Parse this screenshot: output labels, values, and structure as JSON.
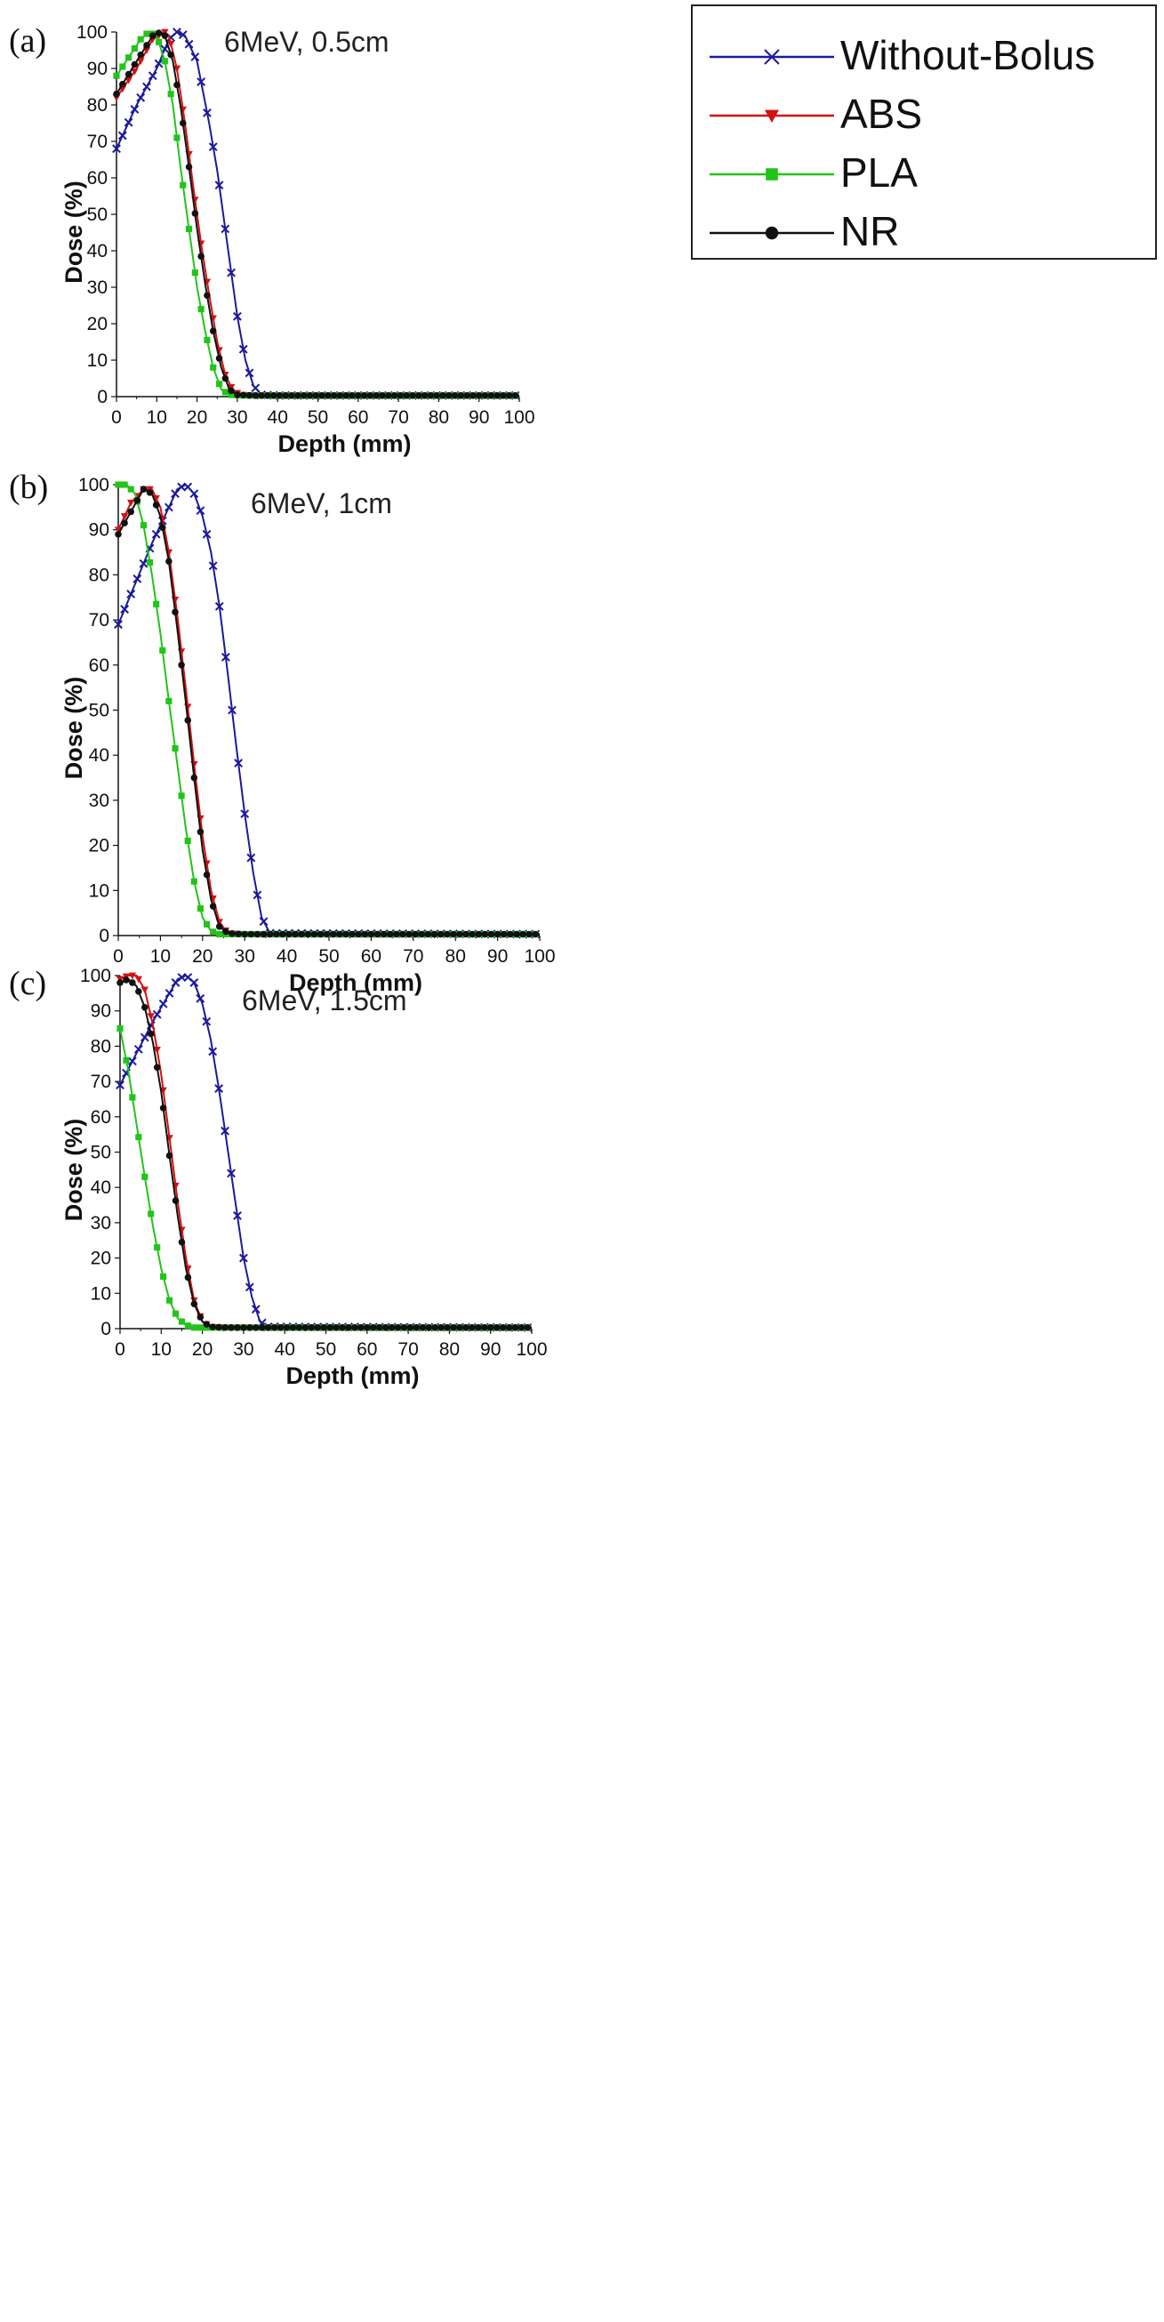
{
  "legend": {
    "entries": [
      {
        "name": "Without-Bolus",
        "color": "#1a1a9c",
        "marker": "x"
      },
      {
        "name": "ABS",
        "color": "#d41010",
        "marker": "triangle-down"
      },
      {
        "name": "PLA",
        "color": "#22c41a",
        "marker": "square"
      },
      {
        "name": "NR",
        "color": "#111111",
        "marker": "circle"
      }
    ]
  },
  "chart_data": [
    {
      "type": "line",
      "panel_label": "(a)",
      "title": "6MeV, 0.5cm",
      "xlabel": "Depth (mm)",
      "ylabel": "Dose (%)",
      "xlim": [
        0,
        100
      ],
      "ylim": [
        0,
        100
      ],
      "xticks": [
        0,
        10,
        20,
        30,
        40,
        50,
        60,
        70,
        80,
        90,
        100
      ],
      "yticks": [
        0,
        10,
        20,
        30,
        40,
        50,
        60,
        70,
        80,
        90,
        100
      ],
      "series": [
        {
          "name": "Without-Bolus",
          "x": [
            0,
            5,
            10,
            13,
            15,
            17,
            20,
            23,
            25,
            28,
            30,
            32,
            34,
            36,
            40,
            100
          ],
          "y": [
            68,
            80,
            90,
            98,
            100,
            99,
            92,
            75,
            62,
            38,
            22,
            10,
            3,
            0.5,
            0.3,
            0.3
          ]
        },
        {
          "name": "ABS",
          "x": [
            0,
            5,
            9,
            12,
            13,
            15,
            17,
            19,
            21,
            23,
            25,
            27,
            29,
            31,
            35,
            100
          ],
          "y": [
            82,
            90,
            98,
            100,
            99,
            90,
            75,
            58,
            42,
            28,
            15,
            6,
            1.5,
            0.5,
            0.3,
            0.3
          ]
        },
        {
          "name": "PLA",
          "x": [
            0,
            3,
            6,
            8,
            10,
            12,
            14,
            16,
            18,
            20,
            22,
            24,
            26,
            28,
            32,
            100
          ],
          "y": [
            88,
            93,
            98,
            100,
            99,
            92,
            80,
            62,
            46,
            30,
            18,
            8,
            2,
            0.5,
            0.3,
            0.3
          ]
        },
        {
          "name": "NR",
          "x": [
            0,
            5,
            9,
            11,
            12,
            14,
            16,
            18,
            20,
            22,
            24,
            26,
            28,
            30,
            34,
            100
          ],
          "y": [
            83,
            92,
            99,
            100,
            99,
            92,
            79,
            63,
            46,
            31,
            18,
            8,
            2,
            0.5,
            0.3,
            0.3
          ]
        }
      ]
    },
    {
      "type": "line",
      "panel_label": "(b)",
      "title": "6MeV, 1cm",
      "xlabel": "Depth (mm)",
      "ylabel": "Dose (%)",
      "xlim": [
        0,
        100
      ],
      "ylim": [
        0,
        100
      ],
      "xticks": [
        0,
        10,
        20,
        30,
        40,
        50,
        60,
        70,
        80,
        90,
        100
      ],
      "yticks": [
        0,
        10,
        20,
        30,
        40,
        50,
        60,
        70,
        80,
        90,
        100
      ],
      "series": [
        {
          "name": "Without-Bolus",
          "x": [
            0,
            4,
            8,
            12,
            14,
            16,
            18,
            20,
            22,
            24,
            26,
            28,
            30,
            32,
            34,
            36,
            100
          ],
          "y": [
            69,
            78,
            87,
            95,
            99,
            100,
            98,
            93,
            85,
            73,
            58,
            42,
            27,
            14,
            4,
            0.5,
            0.3
          ]
        },
        {
          "name": "ABS",
          "x": [
            0,
            3,
            6,
            8,
            10,
            12,
            14,
            16,
            18,
            20,
            22,
            24,
            26,
            30,
            100
          ],
          "y": [
            90,
            96,
            99,
            99,
            95,
            85,
            71,
            55,
            38,
            22,
            10,
            3,
            0.5,
            0.3,
            0.3
          ]
        },
        {
          "name": "PLA",
          "x": [
            0,
            2,
            4,
            6,
            8,
            10,
            12,
            14,
            16,
            18,
            20,
            22,
            24,
            28,
            100
          ],
          "y": [
            100,
            100,
            98,
            91,
            80,
            67,
            52,
            38,
            24,
            12,
            4,
            1,
            0.3,
            0.3,
            0.3
          ]
        },
        {
          "name": "NR",
          "x": [
            0,
            3,
            6,
            8,
            10,
            12,
            14,
            16,
            18,
            20,
            22,
            24,
            26,
            30,
            100
          ],
          "y": [
            89,
            94,
            99,
            98,
            93,
            83,
            68,
            52,
            35,
            19,
            8,
            2,
            0.5,
            0.3,
            0.3
          ]
        }
      ]
    },
    {
      "type": "line",
      "panel_label": "(c)",
      "title": "6MeV, 1.5cm",
      "xlabel": "Depth (mm)",
      "ylabel": "Dose (%)",
      "xlim": [
        0,
        100
      ],
      "ylim": [
        0,
        100
      ],
      "xticks": [
        0,
        10,
        20,
        30,
        40,
        50,
        60,
        70,
        80,
        90,
        100
      ],
      "yticks": [
        0,
        10,
        20,
        30,
        40,
        50,
        60,
        70,
        80,
        90,
        100
      ],
      "series": [
        {
          "name": "Without-Bolus",
          "x": [
            0,
            4,
            8,
            12,
            14,
            16,
            18,
            20,
            22,
            24,
            26,
            28,
            30,
            32,
            34,
            36,
            100
          ],
          "y": [
            69,
            78,
            87,
            95,
            99,
            100,
            98,
            92,
            82,
            68,
            52,
            36,
            20,
            9,
            2,
            0.5,
            0.3
          ]
        },
        {
          "name": "ABS",
          "x": [
            0,
            2,
            4,
            6,
            8,
            10,
            12,
            14,
            16,
            18,
            20,
            22,
            26,
            100
          ],
          "y": [
            99,
            100,
            100,
            96,
            86,
            72,
            54,
            36,
            20,
            8,
            2,
            0.5,
            0.3,
            0.3
          ]
        },
        {
          "name": "PLA",
          "x": [
            0,
            2,
            4,
            6,
            8,
            10,
            12,
            14,
            16,
            18,
            20,
            24,
            100
          ],
          "y": [
            85,
            73,
            58,
            43,
            29,
            17,
            8,
            3,
            1,
            0.3,
            0.3,
            0.3,
            0.3
          ]
        },
        {
          "name": "NR",
          "x": [
            0,
            2,
            4,
            6,
            8,
            10,
            12,
            14,
            16,
            18,
            20,
            22,
            26,
            100
          ],
          "y": [
            98,
            99,
            97,
            91,
            81,
            67,
            49,
            32,
            17,
            7,
            2,
            0.5,
            0.3,
            0.3
          ]
        }
      ]
    }
  ]
}
